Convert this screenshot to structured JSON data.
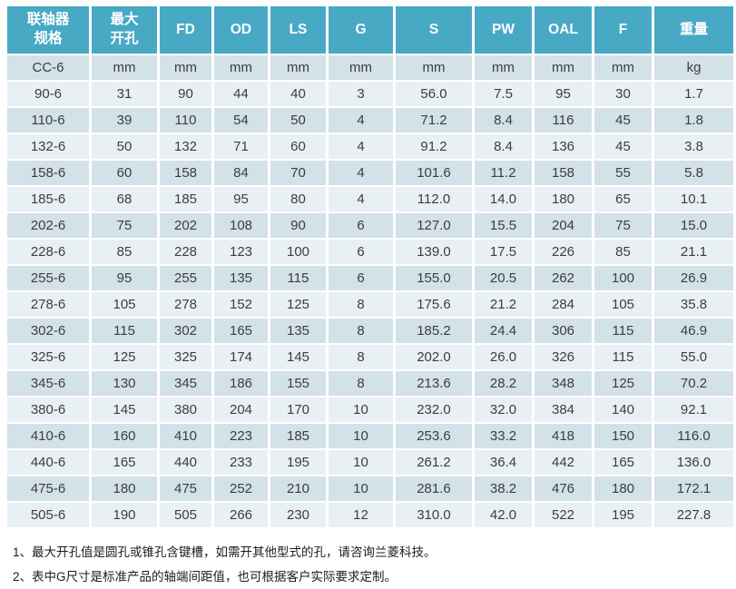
{
  "colors": {
    "header_bg": "#48a9c5",
    "header_text": "#ffffff",
    "row_dark": "#d3e1e9",
    "row_light": "#e9f0f4",
    "body_text": "#3d3d3d"
  },
  "table": {
    "columns": [
      {
        "id": "spec",
        "label_lines": [
          "联轴器",
          "规格"
        ]
      },
      {
        "id": "max-bore",
        "label_lines": [
          "最大",
          "开孔"
        ]
      },
      {
        "id": "fd",
        "label_lines": [
          "FD"
        ]
      },
      {
        "id": "od",
        "label_lines": [
          "OD"
        ]
      },
      {
        "id": "ls",
        "label_lines": [
          "LS"
        ]
      },
      {
        "id": "g",
        "label_lines": [
          "G"
        ]
      },
      {
        "id": "s",
        "label_lines": [
          "S"
        ]
      },
      {
        "id": "pw",
        "label_lines": [
          "PW"
        ]
      },
      {
        "id": "oal",
        "label_lines": [
          "OAL"
        ]
      },
      {
        "id": "f",
        "label_lines": [
          "F"
        ]
      },
      {
        "id": "weight",
        "label_lines": [
          "重量"
        ]
      }
    ],
    "units_row": [
      "CC-6",
      "mm",
      "mm",
      "mm",
      "mm",
      "mm",
      "mm",
      "mm",
      "mm",
      "mm",
      "kg"
    ],
    "rows": [
      [
        "90-6",
        "31",
        "90",
        "44",
        "40",
        "3",
        "56.0",
        "7.5",
        "95",
        "30",
        "1.7"
      ],
      [
        "110-6",
        "39",
        "110",
        "54",
        "50",
        "4",
        "71.2",
        "8.4",
        "116",
        "45",
        "1.8"
      ],
      [
        "132-6",
        "50",
        "132",
        "71",
        "60",
        "4",
        "91.2",
        "8.4",
        "136",
        "45",
        "3.8"
      ],
      [
        "158-6",
        "60",
        "158",
        "84",
        "70",
        "4",
        "101.6",
        "11.2",
        "158",
        "55",
        "5.8"
      ],
      [
        "185-6",
        "68",
        "185",
        "95",
        "80",
        "4",
        "112.0",
        "14.0",
        "180",
        "65",
        "10.1"
      ],
      [
        "202-6",
        "75",
        "202",
        "108",
        "90",
        "6",
        "127.0",
        "15.5",
        "204",
        "75",
        "15.0"
      ],
      [
        "228-6",
        "85",
        "228",
        "123",
        "100",
        "6",
        "139.0",
        "17.5",
        "226",
        "85",
        "21.1"
      ],
      [
        "255-6",
        "95",
        "255",
        "135",
        "115",
        "6",
        "155.0",
        "20.5",
        "262",
        "100",
        "26.9"
      ],
      [
        "278-6",
        "105",
        "278",
        "152",
        "125",
        "8",
        "175.6",
        "21.2",
        "284",
        "105",
        "35.8"
      ],
      [
        "302-6",
        "115",
        "302",
        "165",
        "135",
        "8",
        "185.2",
        "24.4",
        "306",
        "115",
        "46.9"
      ],
      [
        "325-6",
        "125",
        "325",
        "174",
        "145",
        "8",
        "202.0",
        "26.0",
        "326",
        "115",
        "55.0"
      ],
      [
        "345-6",
        "130",
        "345",
        "186",
        "155",
        "8",
        "213.6",
        "28.2",
        "348",
        "125",
        "70.2"
      ],
      [
        "380-6",
        "145",
        "380",
        "204",
        "170",
        "10",
        "232.0",
        "32.0",
        "384",
        "140",
        "92.1"
      ],
      [
        "410-6",
        "160",
        "410",
        "223",
        "185",
        "10",
        "253.6",
        "33.2",
        "418",
        "150",
        "116.0"
      ],
      [
        "440-6",
        "165",
        "440",
        "233",
        "195",
        "10",
        "261.2",
        "36.4",
        "442",
        "165",
        "136.0"
      ],
      [
        "475-6",
        "180",
        "475",
        "252",
        "210",
        "10",
        "281.6",
        "38.2",
        "476",
        "180",
        "172.1"
      ],
      [
        "505-6",
        "190",
        "505",
        "266",
        "230",
        "12",
        "310.0",
        "42.0",
        "522",
        "195",
        "227.8"
      ]
    ]
  },
  "footnotes": [
    "1、最大开孔值是圆孔或锥孔含键槽，如需开其他型式的孔，请咨询兰菱科技。",
    "2、表中G尺寸是标准产品的轴端间距值，也可根据客户实际要求定制。"
  ]
}
